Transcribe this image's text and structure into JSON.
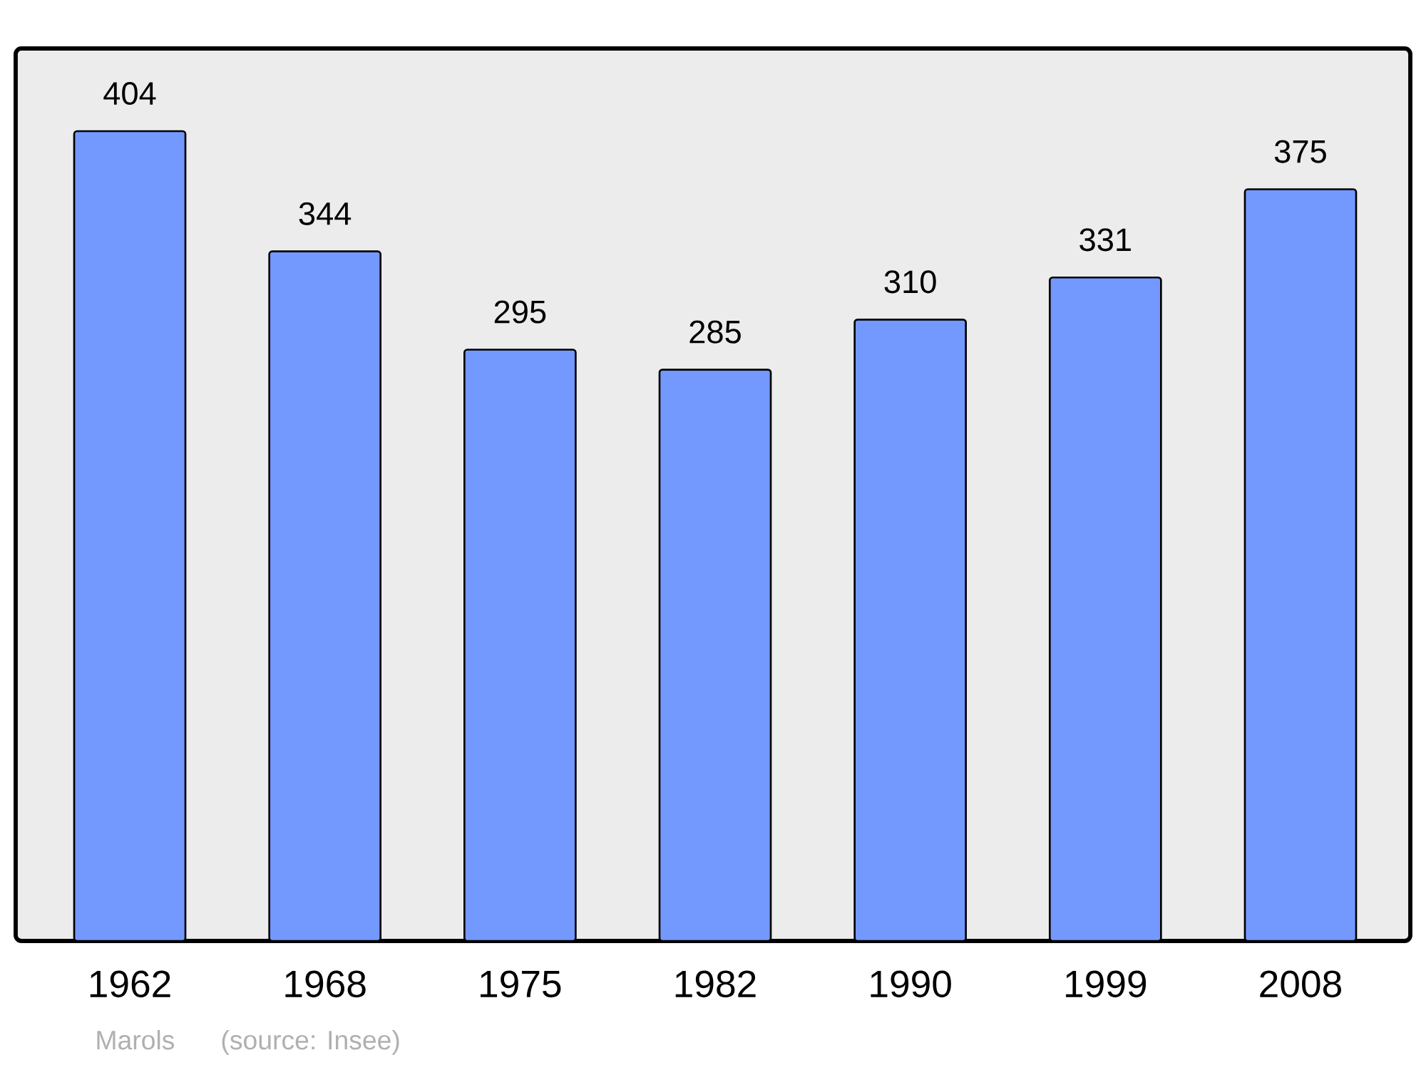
{
  "chart_data": {
    "type": "bar",
    "categories": [
      "1962",
      "1968",
      "1975",
      "1982",
      "1990",
      "1999",
      "2008"
    ],
    "values": [
      404,
      344,
      295,
      285,
      310,
      331,
      375
    ],
    "color": "#7399ff",
    "data_labels": true,
    "annotations": [
      "Marols",
      "(source: Insee)"
    ]
  }
}
